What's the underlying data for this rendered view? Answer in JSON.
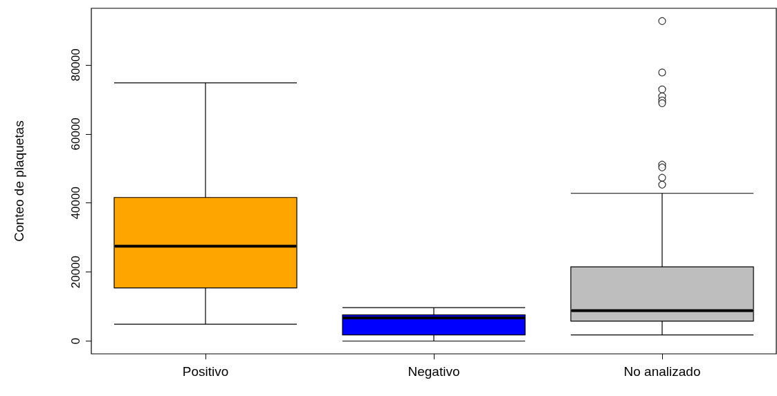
{
  "chart_data": {
    "type": "box",
    "ylabel": "Conteo de plaquetas",
    "categories": [
      "Positivo",
      "Negativo",
      "No analizado"
    ],
    "colors": [
      "#ffa500",
      "#0000ff",
      "#bebebe"
    ],
    "boxes": [
      {
        "low": 4900,
        "q1": 15400,
        "median": 27500,
        "q3": 41600,
        "high": 74800
      },
      {
        "low": 0,
        "q1": 1800,
        "median": 6700,
        "q3": 7600,
        "high": 9700
      },
      {
        "low": 1800,
        "q1": 5800,
        "median": 8800,
        "q3": 21500,
        "high": 42800,
        "outliers": [
          92700,
          77800,
          72900,
          70900,
          69700,
          68900,
          51100,
          50300,
          47300,
          45300
        ]
      }
    ],
    "ylim": [
      -3700,
      96400
    ],
    "yticks": [
      0,
      20000,
      40000,
      60000,
      80000
    ],
    "grid": false
  }
}
